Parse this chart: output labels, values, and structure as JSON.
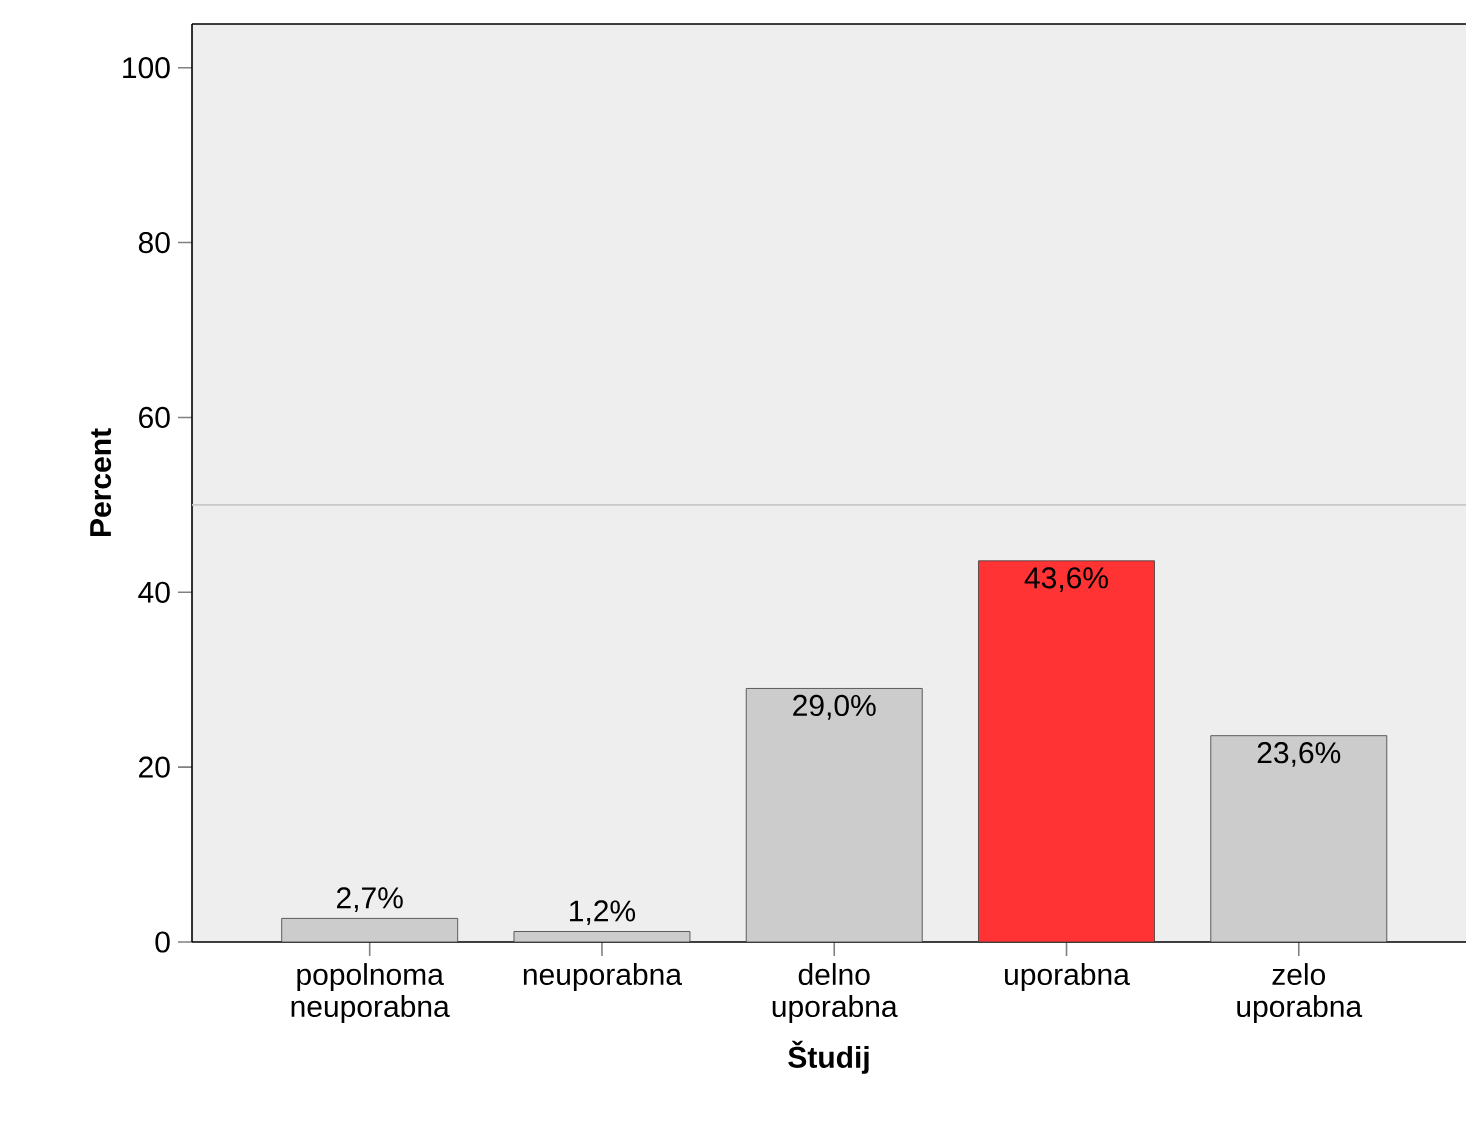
{
  "chart_data": {
    "type": "bar",
    "xlabel": "Študij",
    "ylabel": "Percent",
    "categories": [
      "popolnoma neuporabna",
      "neuporabna",
      "delno uporabna",
      "uporabna",
      "zelo uporabna"
    ],
    "values": [
      2.7,
      1.2,
      29.0,
      43.6,
      23.6
    ],
    "value_labels": [
      "2,7%",
      "1,2%",
      "29,0%",
      "43,6%",
      "23,6%"
    ],
    "colors": [
      "#cccccc",
      "#cccccc",
      "#cccccc",
      "#ff3333",
      "#cccccc"
    ],
    "ylim": [
      0,
      105
    ],
    "yticks": [
      0,
      20,
      40,
      60,
      80,
      100
    ],
    "ref_lines": [
      {
        "axis": "y",
        "value": 50,
        "color": "#c8c8c8"
      }
    ]
  }
}
